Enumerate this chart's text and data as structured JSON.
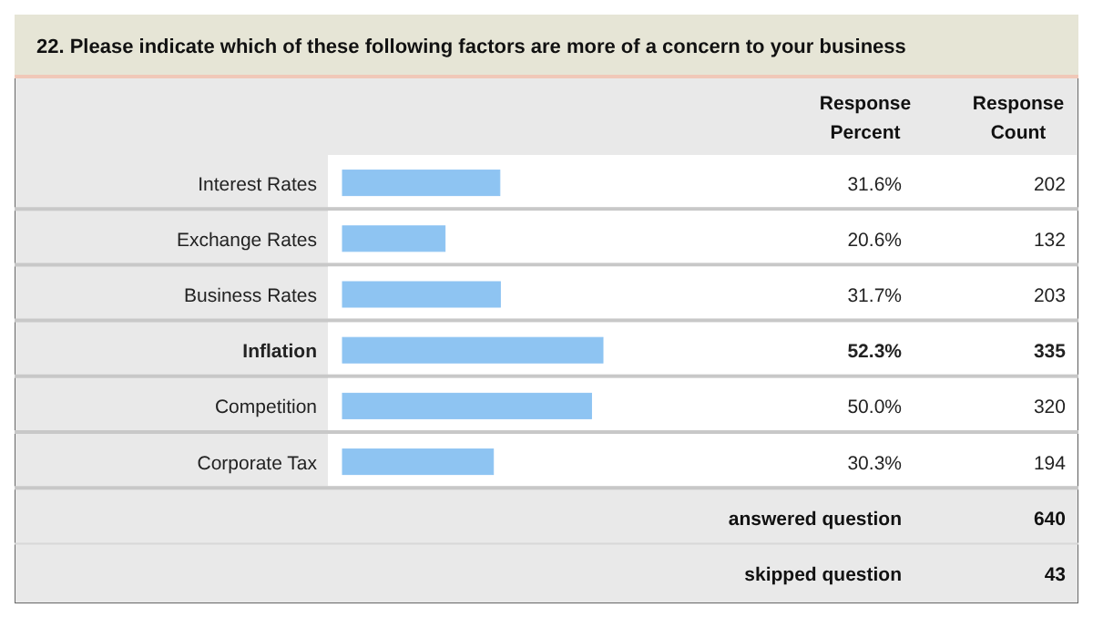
{
  "chart_data": {
    "type": "bar",
    "orientation": "horizontal",
    "title": "22. Please indicate which of these following factors are more of a concern to your business",
    "categories": [
      "Interest Rates",
      "Exchange Rates",
      "Business Rates",
      "Inflation",
      "Competition",
      "Corporate Tax"
    ],
    "values": [
      31.6,
      20.6,
      31.7,
      52.3,
      50.0,
      30.3
    ],
    "value_labels": [
      "31.6%",
      "20.6%",
      "31.7%",
      "52.3%",
      "50.0%",
      "30.3%"
    ],
    "color": "#8ec4f2",
    "annotations": [
      "Response Percent",
      "Response Count",
      "202",
      "132",
      "203",
      "335",
      "320",
      "194",
      "answered question",
      "640",
      "skipped question",
      "43"
    ]
  }
}
